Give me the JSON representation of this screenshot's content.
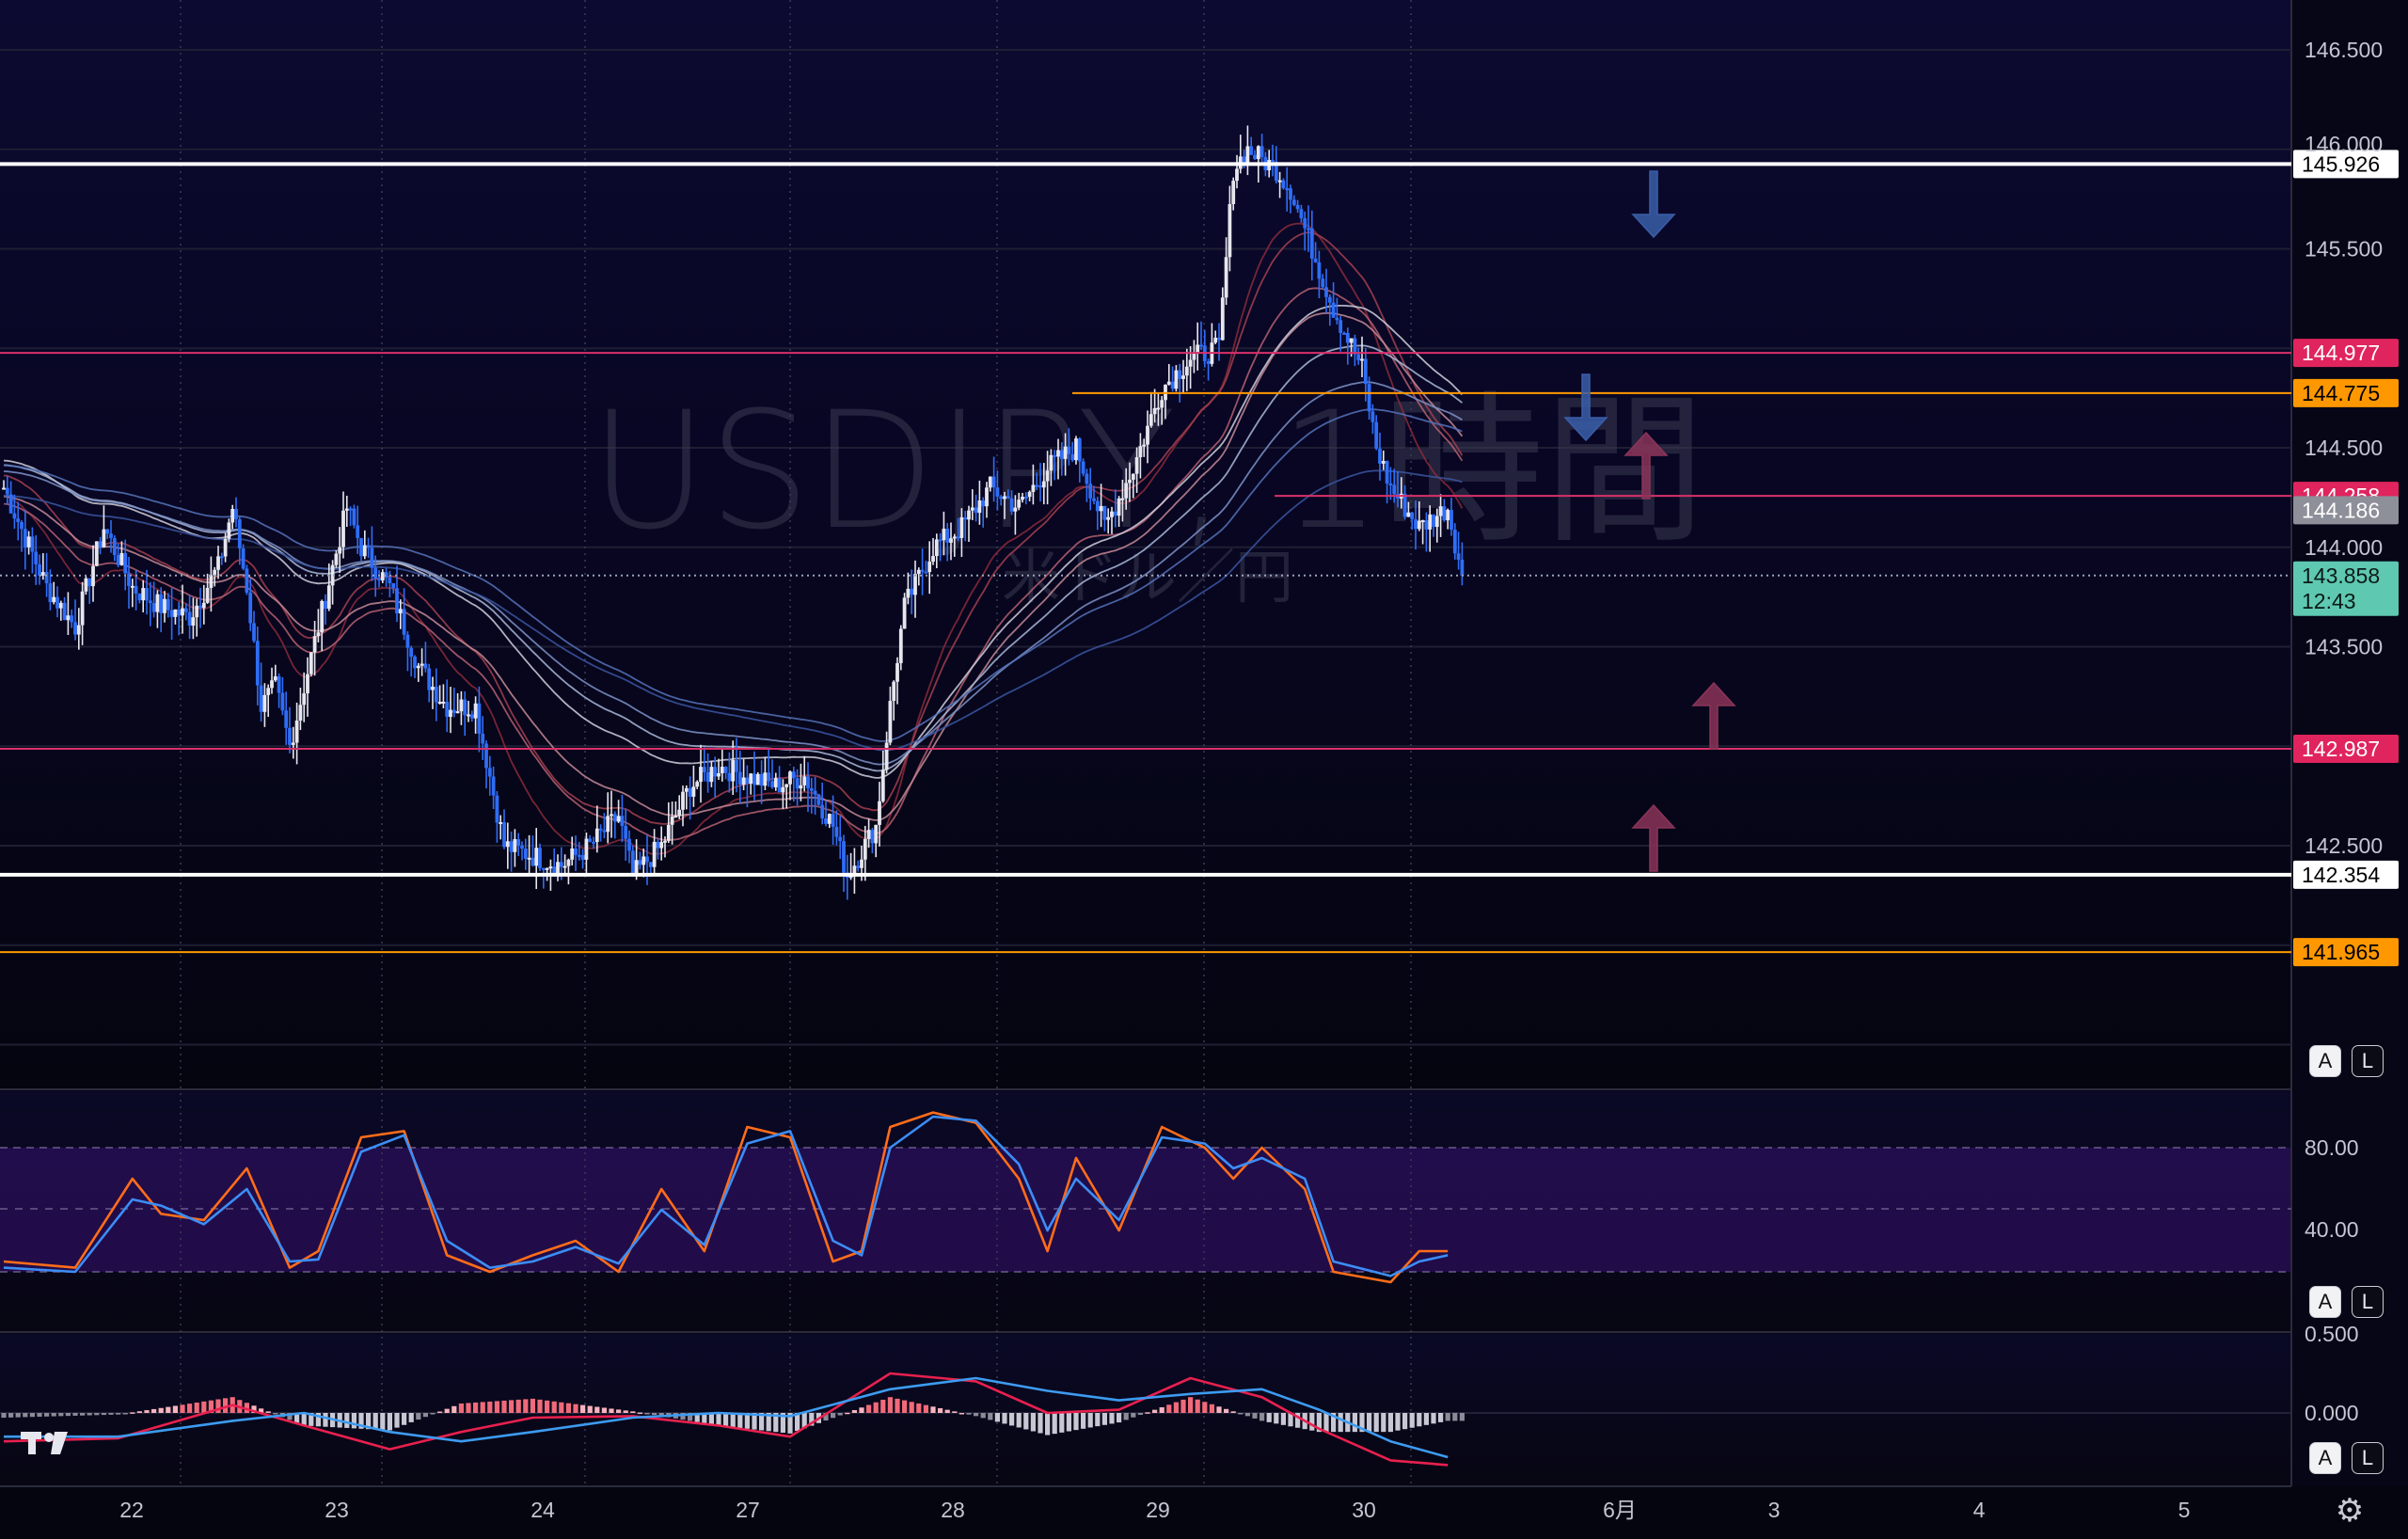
{
  "watermark": {
    "symbol": "USDJPY, 1時間",
    "description": "米ドル／円"
  },
  "price_axis": {
    "ticks": [
      "146.500",
      "145.500",
      "144.500",
      "144.000",
      "143.500",
      "142.500"
    ],
    "tag_146000_partial": "146.000"
  },
  "price_tags": [
    {
      "id": "resist-high",
      "label": "145.926",
      "bg": "#ffffff",
      "fg": "#000000",
      "line": "#ffffff",
      "style": "solid-thick"
    },
    {
      "id": "red-1",
      "label": "144.977",
      "bg": "#e0245e",
      "fg": "#ffffff",
      "line": "#d8306a",
      "style": "solid"
    },
    {
      "id": "orange-1",
      "label": "144.775",
      "bg": "#ff9800",
      "fg": "#000000",
      "line": "#ff9800",
      "style": "solid"
    },
    {
      "id": "red-2",
      "label": "144.258",
      "bg": "#e0245e",
      "fg": "#ffffff",
      "line": "#d8306a",
      "style": "solid"
    },
    {
      "id": "grey-ma",
      "label": "144.186",
      "bg": "#8d8f99",
      "fg": "#ffffff",
      "line": "none",
      "style": "none"
    },
    {
      "id": "current",
      "label": "143.858",
      "sublabel": "12:43",
      "bg": "#5fc8b0",
      "fg": "#0a1a18",
      "line": "#9aa3b8",
      "style": "dotted"
    },
    {
      "id": "red-3",
      "label": "142.987",
      "bg": "#e0245e",
      "fg": "#ffffff",
      "line": "#d8306a",
      "style": "solid"
    },
    {
      "id": "support-low",
      "label": "142.354",
      "bg": "#ffffff",
      "fg": "#000000",
      "line": "#ffffff",
      "style": "solid-thick"
    },
    {
      "id": "orange-2",
      "label": "141.965",
      "bg": "#ff9800",
      "fg": "#000000",
      "line": "#ff9800",
      "style": "solid"
    }
  ],
  "stoch_axis": {
    "ticks": [
      "80.00",
      "40.00"
    ]
  },
  "macd_axis": {
    "ticks": [
      "0.500",
      "0.000"
    ]
  },
  "date_axis": [
    "22",
    "23",
    "24",
    "27",
    "28",
    "29",
    "30",
    "6月",
    "3",
    "4",
    "5"
  ],
  "buttons": {
    "auto": "A",
    "log": "L"
  },
  "colors": {
    "up_candle": "#e6e6ee",
    "down_candle": "#2f6df6",
    "stoch_k": "#ff6d1a",
    "stoch_d": "#3d8df5",
    "macd_line": "#e8204e",
    "signal_line": "#3d9bf0",
    "arrow_down": "#3a5ea8",
    "arrow_up": "#8a3458"
  },
  "chart_data": {
    "type": "candlestick",
    "symbol": "USDJPY",
    "timeframe": "1時間",
    "ylim": [
      141.5,
      146.6
    ],
    "last_price": 143.858,
    "close_path": [
      [
        0,
        144.3
      ],
      [
        3,
        143.8
      ],
      [
        5,
        143.6
      ],
      [
        7,
        144.1
      ],
      [
        9,
        143.8
      ],
      [
        11,
        143.7
      ],
      [
        13,
        143.65
      ],
      [
        15,
        143.9
      ],
      [
        16,
        144.2
      ],
      [
        17,
        143.8
      ],
      [
        18,
        143.2
      ],
      [
        19,
        143.3
      ],
      [
        20,
        143.0
      ],
      [
        22,
        143.6
      ],
      [
        24,
        144.2
      ],
      [
        25,
        144.0
      ],
      [
        26,
        143.9
      ],
      [
        27,
        143.8
      ],
      [
        29,
        143.4
      ],
      [
        31,
        143.2
      ],
      [
        33,
        143.2
      ],
      [
        35,
        142.5
      ],
      [
        37,
        142.45
      ],
      [
        39,
        142.4
      ],
      [
        41,
        142.5
      ],
      [
        43,
        142.65
      ],
      [
        44,
        142.35
      ],
      [
        46,
        142.5
      ],
      [
        48,
        142.8
      ],
      [
        50,
        142.9
      ],
      [
        52,
        142.85
      ],
      [
        54,
        142.8
      ],
      [
        56,
        142.85
      ],
      [
        58,
        142.6
      ],
      [
        59,
        142.35
      ],
      [
        61,
        142.6
      ],
      [
        62,
        143.2
      ],
      [
        63,
        143.7
      ],
      [
        65,
        144.0
      ],
      [
        67,
        144.1
      ],
      [
        69,
        144.3
      ],
      [
        71,
        144.2
      ],
      [
        73,
        144.4
      ],
      [
        75,
        144.5
      ],
      [
        77,
        144.1
      ],
      [
        79,
        144.4
      ],
      [
        81,
        144.8
      ],
      [
        83,
        144.95
      ],
      [
        85,
        145.0
      ],
      [
        86,
        145.9
      ],
      [
        87,
        146.0
      ],
      [
        89,
        145.9
      ],
      [
        90,
        145.8
      ],
      [
        91,
        145.6
      ],
      [
        93,
        145.2
      ],
      [
        95,
        144.9
      ],
      [
        96,
        144.5
      ],
      [
        97,
        144.3
      ],
      [
        99,
        144.1
      ],
      [
        101,
        144.2
      ],
      [
        102,
        143.858
      ]
    ],
    "levels": [
      145.926,
      144.977,
      144.775,
      144.258,
      142.987,
      142.354,
      141.965
    ],
    "stochastic": {
      "bands": [
        80,
        20
      ],
      "ticks": [
        80,
        40
      ],
      "k": [
        [
          0,
          25
        ],
        [
          5,
          22
        ],
        [
          9,
          65
        ],
        [
          11,
          48
        ],
        [
          14,
          45
        ],
        [
          17,
          70
        ],
        [
          20,
          22
        ],
        [
          22,
          30
        ],
        [
          25,
          85
        ],
        [
          28,
          88
        ],
        [
          31,
          28
        ],
        [
          34,
          20
        ],
        [
          37,
          28
        ],
        [
          40,
          35
        ],
        [
          43,
          20
        ],
        [
          46,
          60
        ],
        [
          49,
          30
        ],
        [
          52,
          90
        ],
        [
          55,
          85
        ],
        [
          58,
          25
        ],
        [
          60,
          30
        ],
        [
          62,
          90
        ],
        [
          65,
          97
        ],
        [
          68,
          92
        ],
        [
          71,
          65
        ],
        [
          73,
          30
        ],
        [
          75,
          75
        ],
        [
          78,
          40
        ],
        [
          81,
          90
        ],
        [
          84,
          80
        ],
        [
          86,
          65
        ],
        [
          88,
          80
        ],
        [
          91,
          60
        ],
        [
          93,
          20
        ],
        [
          97,
          15
        ],
        [
          99,
          30
        ],
        [
          101,
          30
        ]
      ],
      "d": [
        [
          0,
          22
        ],
        [
          5,
          20
        ],
        [
          9,
          55
        ],
        [
          11,
          52
        ],
        [
          14,
          43
        ],
        [
          17,
          60
        ],
        [
          20,
          25
        ],
        [
          22,
          26
        ],
        [
          25,
          78
        ],
        [
          28,
          86
        ],
        [
          31,
          35
        ],
        [
          34,
          22
        ],
        [
          37,
          25
        ],
        [
          40,
          32
        ],
        [
          43,
          24
        ],
        [
          46,
          50
        ],
        [
          49,
          33
        ],
        [
          52,
          82
        ],
        [
          55,
          88
        ],
        [
          58,
          35
        ],
        [
          60,
          28
        ],
        [
          62,
          80
        ],
        [
          65,
          95
        ],
        [
          68,
          93
        ],
        [
          71,
          72
        ],
        [
          73,
          40
        ],
        [
          75,
          65
        ],
        [
          78,
          45
        ],
        [
          81,
          85
        ],
        [
          84,
          82
        ],
        [
          86,
          70
        ],
        [
          88,
          75
        ],
        [
          91,
          65
        ],
        [
          93,
          25
        ],
        [
          97,
          18
        ],
        [
          99,
          25
        ],
        [
          101,
          28
        ]
      ]
    },
    "macd": {
      "ticks": [
        0.5,
        0.0
      ],
      "macd_line": [
        [
          0,
          -0.18
        ],
        [
          8,
          -0.16
        ],
        [
          16,
          0.05
        ],
        [
          21,
          -0.08
        ],
        [
          27,
          -0.23
        ],
        [
          32,
          -0.12
        ],
        [
          37,
          -0.03
        ],
        [
          44,
          -0.02
        ],
        [
          50,
          -0.08
        ],
        [
          55,
          -0.15
        ],
        [
          62,
          0.25
        ],
        [
          68,
          0.2
        ],
        [
          73,
          0.0
        ],
        [
          78,
          0.02
        ],
        [
          83,
          0.22
        ],
        [
          88,
          0.1
        ],
        [
          92,
          -0.1
        ],
        [
          97,
          -0.3
        ],
        [
          101,
          -0.33
        ]
      ],
      "signal_line": [
        [
          0,
          -0.15
        ],
        [
          8,
          -0.15
        ],
        [
          16,
          -0.05
        ],
        [
          21,
          0.0
        ],
        [
          27,
          -0.12
        ],
        [
          32,
          -0.18
        ],
        [
          37,
          -0.12
        ],
        [
          44,
          -0.03
        ],
        [
          50,
          0.0
        ],
        [
          55,
          -0.02
        ],
        [
          62,
          0.15
        ],
        [
          68,
          0.22
        ],
        [
          73,
          0.14
        ],
        [
          78,
          0.08
        ],
        [
          83,
          0.12
        ],
        [
          88,
          0.15
        ],
        [
          92,
          0.02
        ],
        [
          97,
          -0.18
        ],
        [
          101,
          -0.28
        ]
      ]
    }
  }
}
